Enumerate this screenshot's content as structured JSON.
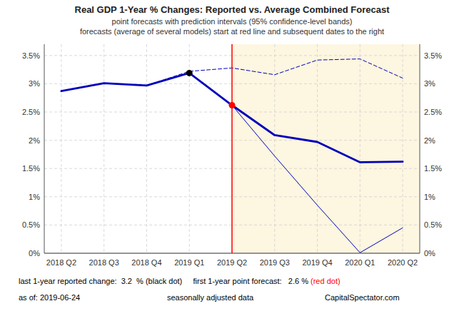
{
  "chart_data": {
    "type": "line",
    "title": "Real GDP 1-Year % Changes: Reported vs. Average Combined Forecast",
    "subtitle": [
      "point forecasts with prediction intervals (95% confidence-level bands)",
      "forecasts (average of several models) start at red line and subsequent dates to the right"
    ],
    "categories": [
      "2018 Q2",
      "2018 Q3",
      "2018 Q4",
      "2019 Q1",
      "2019 Q2",
      "2019 Q3",
      "2019 Q4",
      "2020 Q1",
      "2020 Q2"
    ],
    "series": [
      {
        "color": "#0000bb",
        "line_style": "solid",
        "values": [
          2.87,
          3.01,
          2.97,
          3.19,
          2.62,
          null,
          null,
          null,
          null
        ]
      },
      {
        "color": "#0000bb",
        "line_style": "solid",
        "values": [
          null,
          null,
          null,
          null,
          2.62,
          2.09,
          1.97,
          1.61,
          1.62
        ]
      },
      {
        "color": "#0000bb",
        "line_style": "dashed",
        "values": [
          2.87,
          3.01,
          2.97,
          3.22,
          3.28,
          3.16,
          3.42,
          3.44,
          3.1
        ]
      },
      {
        "color": "#0000bb",
        "line_style": "solid",
        "values": [
          null,
          null,
          null,
          3.19,
          2.62,
          1.72,
          0.85,
          0.01,
          0.45
        ]
      },
      {
        "type": "scatter",
        "marker": "circle",
        "color": "#000000",
        "values": [
          null,
          null,
          null,
          3.19,
          null,
          null,
          null,
          null,
          null
        ]
      },
      {
        "type": "scatter",
        "marker": "circle",
        "color": "#ff0000",
        "values": [
          null,
          null,
          null,
          null,
          2.62,
          null,
          null,
          null,
          null
        ]
      }
    ],
    "ylim": [
      0.0,
      3.7
    ],
    "yticks": [
      {
        "value": 0.0,
        "label": "0%"
      },
      {
        "value": 0.5,
        "label": "0.5%"
      },
      {
        "value": 1.0,
        "label": "1%"
      },
      {
        "value": 1.5,
        "label": "1.5%"
      },
      {
        "value": 2.0,
        "label": "2%"
      },
      {
        "value": 2.5,
        "label": "2.5%"
      },
      {
        "value": 3.0,
        "label": "3%"
      },
      {
        "value": 3.5,
        "label": "3.5%"
      }
    ],
    "y2lim": [
      0.0,
      3.7
    ],
    "y2ticks": [
      {
        "value": 0.0,
        "label": "0%"
      },
      {
        "value": 0.5,
        "label": "0.5%"
      },
      {
        "value": 1.0,
        "label": "1%"
      },
      {
        "value": 1.5,
        "label": "1.5%"
      },
      {
        "value": 2.0,
        "label": "2%"
      },
      {
        "value": 2.5,
        "label": "2.5%"
      },
      {
        "value": 3.0,
        "label": "3%"
      },
      {
        "value": 3.5,
        "label": "3.5%"
      }
    ],
    "grid": true,
    "annotations": [
      [
        {
          "text": "last 1-year reported change:  3.2  % (black dot)     first 1-year point forecast:   2.6 %",
          "color": "#000000"
        },
        {
          "text": " (red dot)",
          "color": "#ff0000"
        }
      ],
      [
        {
          "text": "as of: 2019-06-24",
          "color": "#000000"
        }
      ],
      [
        {
          "text": "seasonally adjusted data",
          "color": "#000000"
        }
      ],
      [
        {
          "text": "CapitalSpectator.com",
          "color": "#000000"
        }
      ]
    ]
  }
}
